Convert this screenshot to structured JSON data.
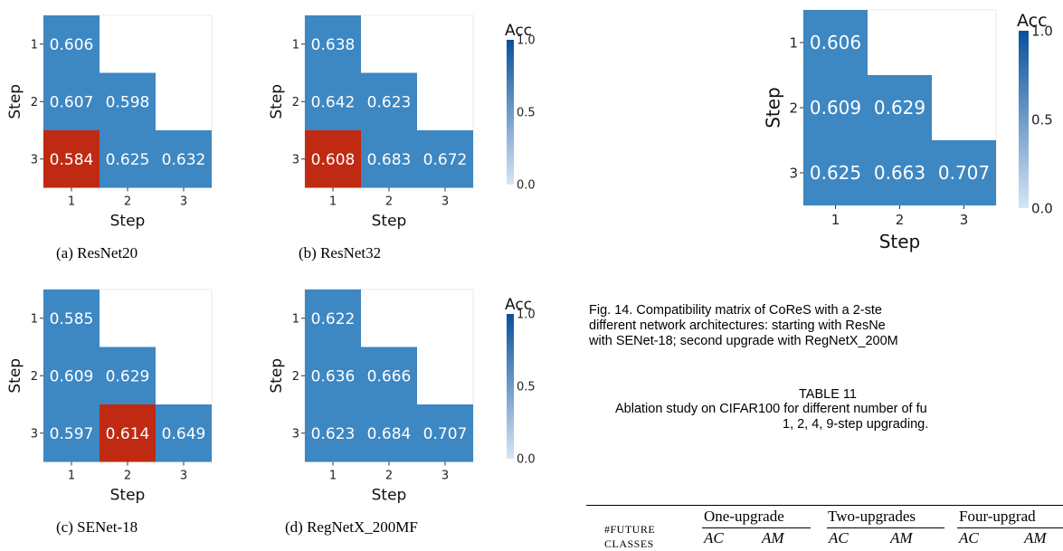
{
  "subfigures": [
    {
      "caption": "(a)  ResNet20",
      "ylabel": "Step",
      "xlabel": "Step",
      "ticks": [
        "1",
        "2",
        "3"
      ],
      "matrix": [
        [
          0.606,
          null,
          null
        ],
        [
          0.607,
          0.598,
          null
        ],
        [
          0.584,
          0.625,
          0.632
        ]
      ],
      "cell_labels": [
        [
          "0.606",
          "",
          ""
        ],
        [
          "0.607",
          "0.598",
          ""
        ],
        [
          "0.584",
          "0.625",
          "0.632"
        ]
      ],
      "highlight": [
        [
          2,
          0
        ]
      ]
    },
    {
      "caption": "(b)  ResNet32",
      "ylabel": "Step",
      "xlabel": "Step",
      "ticks": [
        "1",
        "2",
        "3"
      ],
      "matrix": [
        [
          0.638,
          null,
          null
        ],
        [
          0.642,
          0.623,
          null
        ],
        [
          0.608,
          0.683,
          0.672
        ]
      ],
      "cell_labels": [
        [
          "0.638",
          "",
          ""
        ],
        [
          "0.642",
          "0.623",
          ""
        ],
        [
          "0.608",
          "0.683",
          "0.672"
        ]
      ],
      "highlight": [
        [
          2,
          0
        ]
      ]
    },
    {
      "caption": "(c)  SENet-18",
      "ylabel": "Step",
      "xlabel": "Step",
      "ticks": [
        "1",
        "2",
        "3"
      ],
      "matrix": [
        [
          0.585,
          null,
          null
        ],
        [
          0.609,
          0.629,
          null
        ],
        [
          0.597,
          0.614,
          0.649
        ]
      ],
      "cell_labels": [
        [
          "0.585",
          "",
          ""
        ],
        [
          "0.609",
          "0.629",
          ""
        ],
        [
          "0.597",
          "0.614",
          "0.649"
        ]
      ],
      "highlight": [
        [
          2,
          1
        ]
      ]
    },
    {
      "caption": "(d)  RegNetX_200MF",
      "ylabel": "Step",
      "xlabel": "Step",
      "ticks": [
        "1",
        "2",
        "3"
      ],
      "matrix": [
        [
          0.622,
          null,
          null
        ],
        [
          0.636,
          0.666,
          null
        ],
        [
          0.623,
          0.684,
          0.707
        ]
      ],
      "cell_labels": [
        [
          "0.622",
          "",
          ""
        ],
        [
          "0.636",
          "0.666",
          ""
        ],
        [
          "0.623",
          "0.684",
          "0.707"
        ]
      ],
      "highlight": []
    },
    {
      "caption": "",
      "ylabel": "Step",
      "xlabel": "Step",
      "ticks": [
        "1",
        "2",
        "3"
      ],
      "matrix": [
        [
          0.606,
          null,
          null
        ],
        [
          0.609,
          0.629,
          null
        ],
        [
          0.625,
          0.663,
          0.707
        ]
      ],
      "cell_labels": [
        [
          "0.606",
          "",
          ""
        ],
        [
          "0.609",
          "0.629",
          ""
        ],
        [
          "0.625",
          "0.663",
          "0.707"
        ]
      ],
      "highlight": []
    }
  ],
  "colorbar": {
    "title": "Acc",
    "ticks": [
      "1.0",
      "0.5",
      "0.0"
    ],
    "range": [
      0.0,
      1.0
    ],
    "color_low": "#d6e5f5",
    "color_high": "#08519c"
  },
  "colors": {
    "cell_fill": "#3d87c3",
    "highlight_fill": "#c12a12",
    "cell_text": "#ffffff"
  },
  "figure14": {
    "lines": [
      "Fig. 14.  Compatibility matrix of CoReS with a 2-ste",
      "different network architectures: starting with ResNe",
      "with SENet-18; second upgrade with RegNetX_200M"
    ]
  },
  "table11": {
    "heading": "TABLE 11",
    "description_lines": [
      "Ablation study on CIFAR100 for different number of fu",
      "1, 2, 4, 9-step upgrading."
    ],
    "row_label_line1": "#FUTURE",
    "row_label_line2": "CLASSES",
    "groups": [
      {
        "name": "One-upgrade",
        "cols": [
          "AC",
          "AM"
        ]
      },
      {
        "name": "Two-upgrades",
        "cols": [
          "AC",
          "AM"
        ]
      },
      {
        "name": "Four-upgrad",
        "cols": [
          "AC",
          "AM"
        ]
      }
    ]
  }
}
